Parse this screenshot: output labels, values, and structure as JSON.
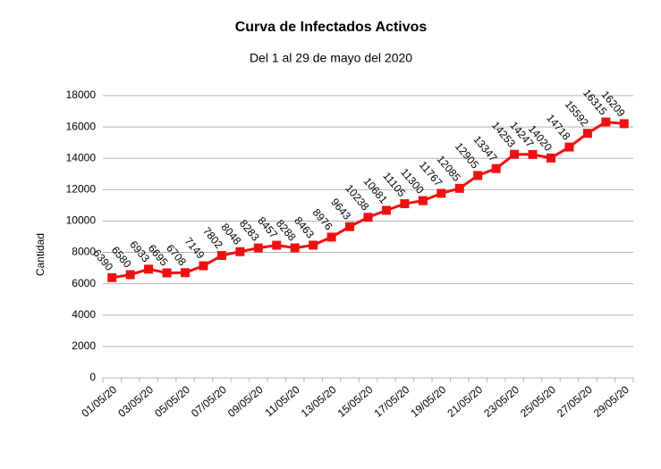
{
  "chart_data": {
    "type": "line",
    "title": "Curva de Infectados Activos",
    "subtitle": "Del 1 al 29 de mayo del 2020",
    "y_label": "Cantidad",
    "categories": [
      "01/05/20",
      null,
      "03/05/20",
      null,
      "05/05/20",
      null,
      "07/05/20",
      null,
      "09/05/20",
      null,
      "11/05/20",
      null,
      "13/05/20",
      null,
      "15/05/20",
      null,
      "17/05/20",
      null,
      "19/05/20",
      null,
      "21/05/20",
      null,
      "23/05/20",
      null,
      "25/05/20",
      null,
      "27/05/20",
      null,
      "29/05/20"
    ],
    "values": [
      6390,
      6580,
      6933,
      6695,
      6708,
      7149,
      7802,
      8048,
      8283,
      8457,
      8288,
      8463,
      8976,
      9643,
      10238,
      10681,
      11105,
      11300,
      11767,
      12085,
      12905,
      13347,
      14253,
      14247,
      14020,
      14718,
      15592,
      16315,
      16209
    ],
    "color": "#ee1111",
    "ylim": [
      0,
      18000
    ],
    "yticks": [
      0,
      2000,
      4000,
      6000,
      8000,
      10000,
      12000,
      14000,
      16000,
      18000
    ],
    "grid": true
  }
}
